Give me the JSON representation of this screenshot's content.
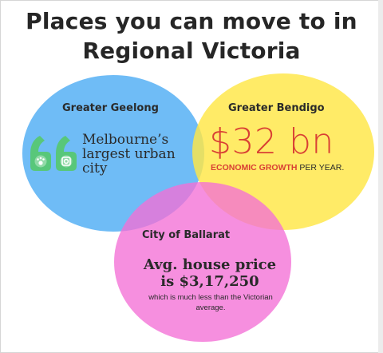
{
  "title": {
    "line1": "Places you can move to in",
    "line2": "Regional Victoria"
  },
  "circles": {
    "geelong": {
      "label": "Greater Geelong",
      "text_lines": [
        "Melbourne’s",
        "largest urban",
        "city"
      ],
      "icon": "quote-icon",
      "color": "#56b0f4"
    },
    "bendigo": {
      "label": "Greater Bendigo",
      "value": "$32 bn",
      "highlight": "ECONOMIC GROWTH",
      "suffix": " PER YEAR.",
      "color": "#ffe646"
    },
    "ballarat": {
      "label": "City of Ballarat",
      "price_line1": "Avg. house  price",
      "price_line2": "is  $3,17,250",
      "note_line1": "which is much less than the Victorian",
      "note_line2": "average.",
      "color": "#f470d6"
    }
  },
  "colors": {
    "accent_red": "#d94034",
    "quote_icon": "#58c77a"
  }
}
